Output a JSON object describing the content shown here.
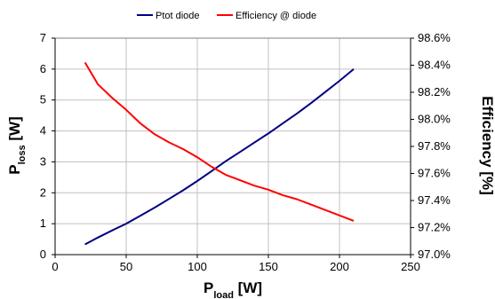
{
  "chart_data": {
    "type": "line",
    "title": "",
    "x_axis": {
      "label_main": "P",
      "label_sub": "load",
      "label_unit": " [W]",
      "min": 0,
      "max": 250,
      "ticks": [
        0,
        50,
        100,
        150,
        200,
        250
      ],
      "tick_labels": [
        "0",
        "50",
        "100",
        "150",
        "200",
        "250"
      ]
    },
    "y_left": {
      "label_main": "P",
      "label_sub": "loss",
      "label_unit": " [W]",
      "min": 0,
      "max": 7,
      "ticks": [
        0,
        1,
        2,
        3,
        4,
        5,
        6,
        7
      ],
      "tick_labels": [
        "0",
        "1",
        "2",
        "3",
        "4",
        "5",
        "6",
        "7"
      ]
    },
    "y_right": {
      "label": "Efficiency [%]",
      "min": 97.0,
      "max": 98.6,
      "ticks": [
        97.0,
        97.2,
        97.4,
        97.6,
        97.8,
        98.0,
        98.2,
        98.4,
        98.6
      ],
      "tick_labels": [
        "97.0%",
        "97.2%",
        "97.4%",
        "97.6%",
        "97.8%",
        "98.0%",
        "98.2%",
        "98.4%",
        "98.6%"
      ]
    },
    "grid": true,
    "legend_position": "top",
    "series": [
      {
        "name": "Ptot diode",
        "axis": "left",
        "color": "#000080",
        "x": [
          21,
          30,
          40,
          50,
          60,
          70,
          80,
          90,
          100,
          110,
          120,
          130,
          140,
          150,
          160,
          170,
          180,
          190,
          200,
          210
        ],
        "y": [
          0.33,
          0.55,
          0.78,
          1.0,
          1.26,
          1.52,
          1.8,
          2.08,
          2.38,
          2.7,
          3.02,
          3.32,
          3.62,
          3.92,
          4.24,
          4.56,
          4.9,
          5.26,
          5.62,
          6.0
        ]
      },
      {
        "name": "Efficiency @ diode",
        "axis": "right",
        "color": "#ff0000",
        "x": [
          21,
          25,
          30,
          40,
          50,
          60,
          70,
          80,
          90,
          100,
          110,
          120,
          130,
          140,
          150,
          160,
          170,
          180,
          190,
          200,
          210
        ],
        "y": [
          98.42,
          98.35,
          98.26,
          98.16,
          98.07,
          97.97,
          97.89,
          97.83,
          97.78,
          97.72,
          97.65,
          97.59,
          97.55,
          97.51,
          97.48,
          97.44,
          97.41,
          97.37,
          97.33,
          97.29,
          97.25
        ]
      }
    ]
  }
}
